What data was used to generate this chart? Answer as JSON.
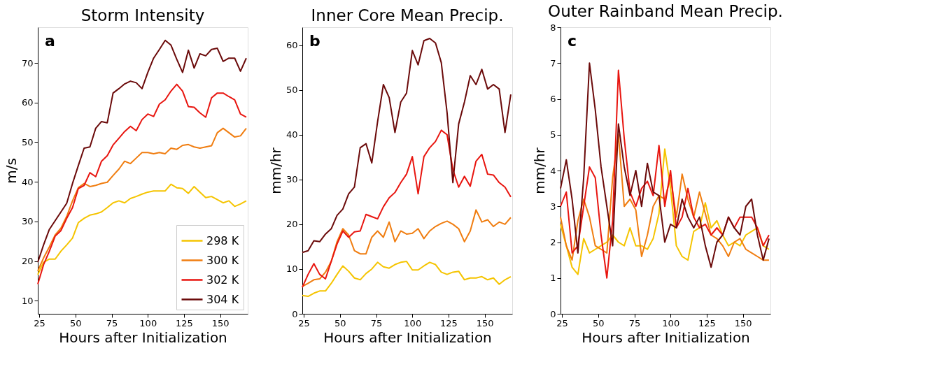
{
  "chart_data": [
    {
      "type": "line",
      "title": "Storm Intensity",
      "xlabel": "Hours after Initialization",
      "ylabel": "m/s",
      "annotations": [
        "a"
      ],
      "x": [
        24,
        28,
        32,
        36,
        40,
        44,
        48,
        52,
        56,
        60,
        64,
        68,
        72,
        76,
        80,
        84,
        88,
        92,
        96,
        100,
        104,
        108,
        112,
        116,
        120,
        124,
        128,
        132,
        136,
        140,
        144,
        148,
        152,
        156,
        160,
        164,
        168
      ],
      "xlim": [
        24,
        169
      ],
      "xticks": [
        25,
        50,
        75,
        100,
        125,
        150
      ],
      "ylim": [
        6.7,
        79
      ],
      "yticks": [
        10,
        20,
        30,
        40,
        50,
        60,
        70
      ],
      "grid": false,
      "legend": "bottom right",
      "line_style": "solid",
      "marker": "none",
      "series": [
        {
          "name": "298 K",
          "color": "#f5c400",
          "values": [
            16.6,
            19.7,
            20.5,
            20.5,
            22.5,
            24.1,
            25.8,
            29.7,
            30.8,
            31.6,
            31.9,
            32.4,
            33.5,
            34.7,
            35.2,
            34.7,
            35.8,
            36.3,
            36.9,
            37.4,
            37.7,
            37.7,
            37.7,
            39.4,
            38.5,
            38.3,
            37.1,
            38.8,
            37.4,
            36,
            36.3,
            35.5,
            34.7,
            35.2,
            33.8,
            34.4,
            35.2
          ]
        },
        {
          "name": "300 K",
          "color": "#f07d10",
          "values": [
            17.5,
            20.8,
            23.6,
            26.6,
            28.3,
            31.3,
            35.2,
            38.5,
            39.6,
            38.8,
            39.1,
            39.6,
            39.9,
            41.6,
            43.2,
            45.2,
            44.6,
            46,
            47.4,
            47.4,
            47.1,
            47.4,
            47.1,
            48.5,
            48.2,
            49.2,
            49.4,
            48.8,
            48.5,
            48.8,
            49.1,
            52.4,
            53.5,
            52.4,
            51.3,
            51.6,
            53.5
          ]
        },
        {
          "name": "302 K",
          "color": "#e8150f",
          "values": [
            14.2,
            19.1,
            22.5,
            26.3,
            27.7,
            30.8,
            33.5,
            38.3,
            39.1,
            42.3,
            41.3,
            45.2,
            46.6,
            49.3,
            51,
            52.7,
            54,
            52.9,
            55.7,
            57.1,
            56.5,
            59.6,
            60.7,
            62.9,
            64.6,
            62.9,
            59,
            58.8,
            57.4,
            56.3,
            61.2,
            62.4,
            62.4,
            61.5,
            60.7,
            57.1,
            56.3
          ]
        },
        {
          "name": "304 K",
          "color": "#6b0a0a",
          "values": [
            19.7,
            24.1,
            28,
            30.2,
            32.4,
            34.6,
            39.6,
            44.1,
            48.5,
            48.8,
            53.5,
            55.2,
            54.9,
            62.4,
            63.5,
            64.7,
            65.4,
            65,
            63.5,
            67.6,
            71.2,
            73.4,
            75.7,
            74.5,
            70.9,
            67.6,
            73.2,
            68.7,
            72.3,
            71.8,
            73.4,
            73.7,
            70.4,
            71.2,
            71.2,
            67.9,
            71.2
          ]
        }
      ]
    },
    {
      "type": "line",
      "title": "Inner Core Mean Precip.",
      "xlabel": "Hours after Initialization",
      "ylabel": "mm/hr",
      "annotations": [
        "b"
      ],
      "x": [
        24,
        28,
        32,
        36,
        40,
        44,
        48,
        52,
        56,
        60,
        64,
        68,
        72,
        76,
        80,
        84,
        88,
        92,
        96,
        100,
        104,
        108,
        112,
        116,
        120,
        124,
        128,
        132,
        136,
        140,
        144,
        148,
        152,
        156,
        160,
        164,
        168
      ],
      "xlim": [
        24,
        169
      ],
      "xticks": [
        25,
        50,
        75,
        100,
        125,
        150
      ],
      "ylim": [
        0,
        64
      ],
      "yticks": [
        0,
        10,
        20,
        30,
        40,
        50,
        60
      ],
      "grid": false,
      "line_style": "solid",
      "marker": "none",
      "series": [
        {
          "color": "#f5c400",
          "values": [
            4.1,
            3.9,
            4.6,
            5.1,
            5.1,
            6.8,
            8.8,
            10.7,
            9.5,
            8,
            7.6,
            9,
            10,
            11.5,
            10.5,
            10.2,
            11,
            11.5,
            11.7,
            9.8,
            9.8,
            10.7,
            11.5,
            11,
            9.3,
            8.8,
            9.3,
            9.5,
            7.6,
            8,
            8,
            8.3,
            7.6,
            8,
            6.6,
            7.6,
            8.3
          ]
        },
        {
          "color": "#f07d10",
          "values": [
            6.1,
            6.8,
            7.6,
            7.8,
            9.3,
            11.7,
            16.1,
            19,
            17.6,
            14.1,
            13.4,
            13.4,
            17.1,
            18.5,
            17.1,
            20.5,
            16.1,
            18.5,
            17.8,
            18,
            19,
            16.8,
            18.5,
            19.5,
            20.2,
            20.7,
            20,
            19,
            16.1,
            18.5,
            23.2,
            20.5,
            21,
            19.5,
            20.5,
            20,
            21.5
          ]
        },
        {
          "color": "#e8150f",
          "values": [
            5.9,
            8.8,
            11.2,
            8.8,
            7.8,
            11.7,
            15.6,
            18.5,
            17.1,
            18.3,
            18.5,
            22.2,
            21.7,
            21.2,
            23.9,
            25.9,
            27.1,
            29.3,
            31.2,
            35.1,
            26.8,
            35.1,
            37.1,
            38.5,
            41,
            40,
            32.2,
            28.3,
            30.7,
            28.5,
            34.1,
            35.6,
            31.2,
            31,
            29.3,
            28.3,
            26.1
          ]
        },
        {
          "color": "#6b0a0a",
          "values": [
            13.7,
            14.1,
            16.3,
            16.1,
            17.8,
            19,
            22,
            23.4,
            26.8,
            28.3,
            37.1,
            38,
            33.7,
            42.9,
            51.2,
            48.3,
            40.5,
            47.3,
            49.3,
            58.8,
            55.6,
            61,
            61.5,
            60.5,
            56.1,
            44.9,
            29.3,
            42.4,
            47.3,
            53.2,
            51.2,
            54.6,
            50.2,
            51.2,
            50.2,
            40.5,
            49
          ]
        }
      ]
    },
    {
      "type": "line",
      "title": "Outer Rainband Mean Precip.",
      "xlabel": "Hours after Initialization",
      "ylabel": "mm/hr",
      "annotations": [
        "c"
      ],
      "x": [
        24,
        28,
        32,
        36,
        40,
        44,
        48,
        52,
        56,
        60,
        64,
        68,
        72,
        76,
        80,
        84,
        88,
        92,
        96,
        100,
        104,
        108,
        112,
        116,
        120,
        124,
        128,
        132,
        136,
        140,
        144,
        148,
        152,
        156,
        160,
        164,
        168
      ],
      "xlim": [
        24,
        169
      ],
      "xticks": [
        25,
        50,
        75,
        100,
        125,
        150
      ],
      "ylim": [
        0,
        8
      ],
      "yticks": [
        0,
        1,
        2,
        3,
        4,
        5,
        6,
        7,
        8
      ],
      "grid": false,
      "line_style": "solid",
      "marker": "none",
      "series": [
        {
          "color": "#f5c400",
          "values": [
            2.5,
            1.9,
            1.3,
            1.1,
            2.1,
            1.7,
            1.8,
            1.9,
            2.0,
            2.2,
            2.0,
            1.9,
            2.4,
            1.9,
            1.9,
            1.8,
            2.1,
            2.8,
            4.6,
            3.5,
            1.9,
            1.6,
            1.5,
            2.3,
            2.4,
            3.1,
            2.4,
            2.6,
            2.2,
            1.9,
            2.0,
            1.9,
            2.2,
            2.3,
            2.4,
            1.9,
            1.8
          ]
        },
        {
          "color": "#f07d10",
          "values": [
            2.7,
            1.9,
            1.5,
            2.6,
            3.2,
            2.7,
            1.9,
            1.8,
            1.7,
            3.8,
            5.0,
            3.0,
            3.2,
            2.9,
            1.6,
            2.2,
            3.0,
            3.3,
            3.2,
            3.8,
            2.7,
            3.9,
            3.2,
            2.7,
            3.4,
            2.8,
            2.2,
            2.1,
            1.9,
            1.6,
            2.0,
            2.1,
            1.8,
            1.7,
            1.6,
            1.5,
            1.5
          ]
        },
        {
          "color": "#e8150f",
          "values": [
            3.0,
            3.4,
            1.7,
            1.9,
            3.0,
            4.1,
            3.8,
            2.2,
            1.0,
            2.6,
            6.8,
            4.9,
            3.4,
            3.0,
            3.5,
            3.7,
            3.3,
            4.7,
            3.0,
            4.0,
            2.4,
            2.7,
            3.5,
            2.7,
            2.4,
            2.5,
            2.2,
            2.4,
            2.2,
            2.7,
            2.4,
            2.7,
            2.7,
            2.7,
            2.4,
            1.9,
            2.2
          ]
        },
        {
          "color": "#6b0a0a",
          "values": [
            3.5,
            4.3,
            3.2,
            1.7,
            3.8,
            7.0,
            5.7,
            4.1,
            3.0,
            1.9,
            5.3,
            4.1,
            3.3,
            4.0,
            3.0,
            4.2,
            3.4,
            3.3,
            2.0,
            2.5,
            2.4,
            3.2,
            2.7,
            2.4,
            2.7,
            1.9,
            1.3,
            2.0,
            2.2,
            2.7,
            2.4,
            2.2,
            3.0,
            3.2,
            2.2,
            1.5,
            2.1
          ]
        }
      ]
    }
  ]
}
